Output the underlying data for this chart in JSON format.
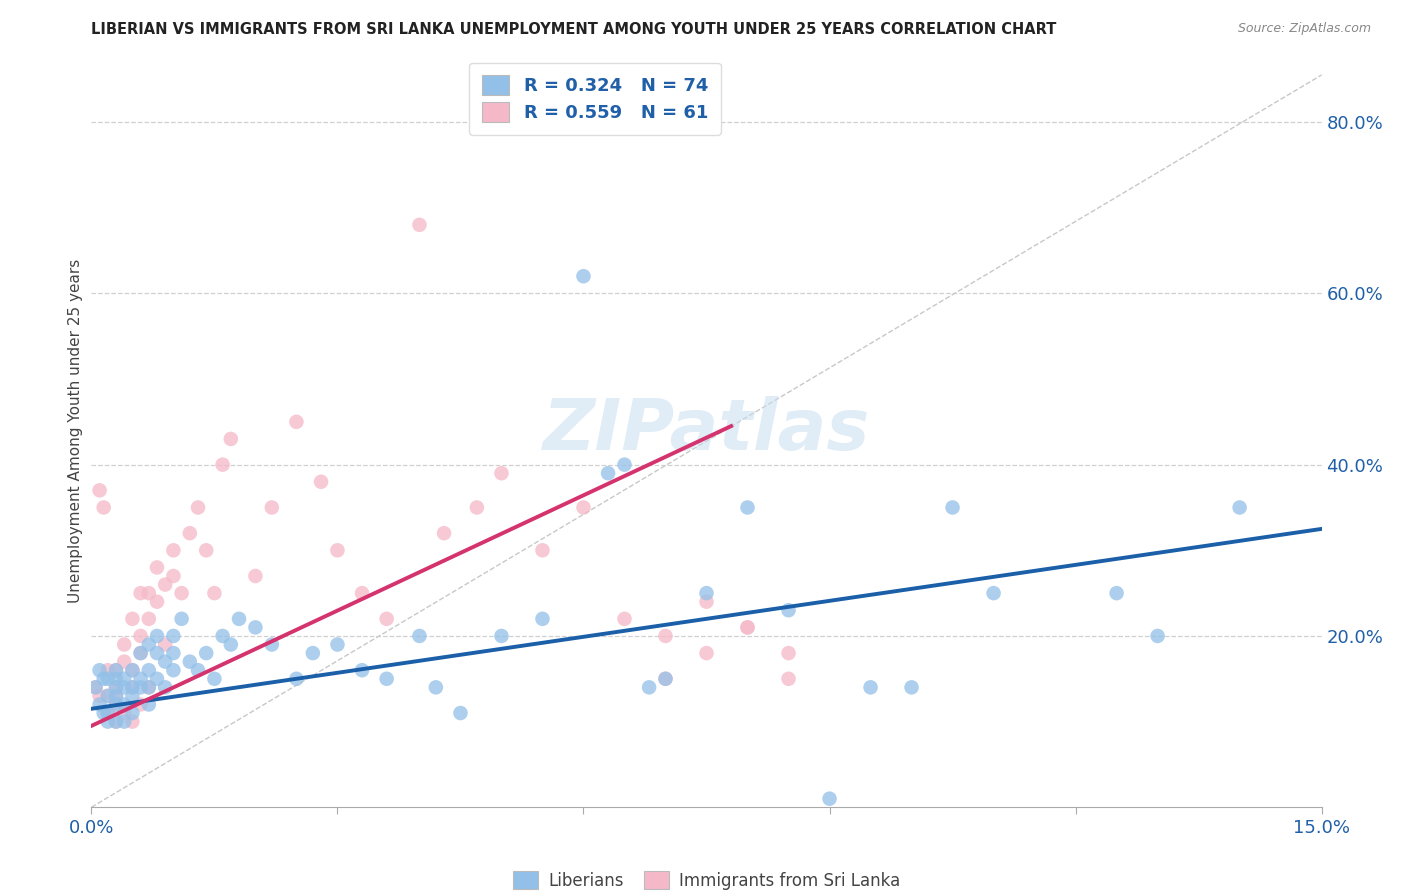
{
  "title": "LIBERIAN VS IMMIGRANTS FROM SRI LANKA UNEMPLOYMENT AMONG YOUTH UNDER 25 YEARS CORRELATION CHART",
  "source": "Source: ZipAtlas.com",
  "ylabel": "Unemployment Among Youth under 25 years",
  "xlim": [
    0.0,
    0.15
  ],
  "ylim": [
    0.0,
    0.88
  ],
  "xticks": [
    0.0,
    0.03,
    0.06,
    0.09,
    0.12,
    0.15
  ],
  "xticklabels": [
    "0.0%",
    "",
    "",
    "",
    "",
    "15.0%"
  ],
  "yticks_right": [
    0.0,
    0.2,
    0.4,
    0.6,
    0.8
  ],
  "yticklabels_right": [
    "",
    "20.0%",
    "40.0%",
    "60.0%",
    "80.0%"
  ],
  "blue_R": 0.324,
  "blue_N": 74,
  "pink_R": 0.559,
  "pink_N": 61,
  "blue_color": "#92c0e8",
  "pink_color": "#f5b8c8",
  "blue_line_color": "#1a5fa8",
  "pink_line_color": "#d4336e",
  "ref_line_color": "#c8c8c8",
  "background_color": "#ffffff",
  "watermark": "ZIPatlas",
  "blue_scatter_x": [
    0.0005,
    0.001,
    0.001,
    0.0015,
    0.0015,
    0.002,
    0.002,
    0.002,
    0.002,
    0.003,
    0.003,
    0.003,
    0.003,
    0.003,
    0.003,
    0.004,
    0.004,
    0.004,
    0.004,
    0.005,
    0.005,
    0.005,
    0.005,
    0.006,
    0.006,
    0.006,
    0.007,
    0.007,
    0.007,
    0.007,
    0.008,
    0.008,
    0.008,
    0.009,
    0.009,
    0.01,
    0.01,
    0.01,
    0.011,
    0.012,
    0.013,
    0.014,
    0.015,
    0.016,
    0.017,
    0.018,
    0.02,
    0.022,
    0.025,
    0.027,
    0.03,
    0.033,
    0.036,
    0.04,
    0.042,
    0.045,
    0.05,
    0.055,
    0.06,
    0.063,
    0.065,
    0.068,
    0.07,
    0.075,
    0.08,
    0.085,
    0.09,
    0.095,
    0.1,
    0.105,
    0.11,
    0.125,
    0.13,
    0.14
  ],
  "blue_scatter_y": [
    0.14,
    0.12,
    0.16,
    0.11,
    0.15,
    0.13,
    0.15,
    0.11,
    0.1,
    0.13,
    0.15,
    0.12,
    0.1,
    0.14,
    0.16,
    0.14,
    0.12,
    0.1,
    0.15,
    0.14,
    0.16,
    0.11,
    0.13,
    0.15,
    0.18,
    0.14,
    0.16,
    0.14,
    0.19,
    0.12,
    0.18,
    0.2,
    0.15,
    0.17,
    0.14,
    0.2,
    0.16,
    0.18,
    0.22,
    0.17,
    0.16,
    0.18,
    0.15,
    0.2,
    0.19,
    0.22,
    0.21,
    0.19,
    0.15,
    0.18,
    0.19,
    0.16,
    0.15,
    0.2,
    0.14,
    0.11,
    0.2,
    0.22,
    0.62,
    0.39,
    0.4,
    0.14,
    0.15,
    0.25,
    0.35,
    0.23,
    0.01,
    0.14,
    0.14,
    0.35,
    0.25,
    0.25,
    0.2,
    0.35
  ],
  "pink_scatter_x": [
    0.0005,
    0.001,
    0.001,
    0.0015,
    0.002,
    0.002,
    0.002,
    0.003,
    0.003,
    0.003,
    0.003,
    0.003,
    0.004,
    0.004,
    0.004,
    0.005,
    0.005,
    0.005,
    0.005,
    0.006,
    0.006,
    0.006,
    0.006,
    0.007,
    0.007,
    0.007,
    0.008,
    0.008,
    0.009,
    0.009,
    0.01,
    0.01,
    0.011,
    0.012,
    0.013,
    0.014,
    0.015,
    0.016,
    0.017,
    0.02,
    0.022,
    0.025,
    0.028,
    0.03,
    0.033,
    0.036,
    0.04,
    0.043,
    0.047,
    0.05,
    0.055,
    0.06,
    0.065,
    0.07,
    0.075,
    0.08,
    0.085,
    0.07,
    0.075,
    0.08,
    0.085
  ],
  "pink_scatter_y": [
    0.14,
    0.37,
    0.13,
    0.35,
    0.13,
    0.16,
    0.11,
    0.14,
    0.16,
    0.1,
    0.13,
    0.12,
    0.17,
    0.19,
    0.11,
    0.14,
    0.22,
    0.16,
    0.1,
    0.18,
    0.2,
    0.12,
    0.25,
    0.25,
    0.22,
    0.14,
    0.28,
    0.24,
    0.26,
    0.19,
    0.3,
    0.27,
    0.25,
    0.32,
    0.35,
    0.3,
    0.25,
    0.4,
    0.43,
    0.27,
    0.35,
    0.45,
    0.38,
    0.3,
    0.25,
    0.22,
    0.68,
    0.32,
    0.35,
    0.39,
    0.3,
    0.35,
    0.22,
    0.15,
    0.18,
    0.21,
    0.15,
    0.2,
    0.24,
    0.21,
    0.18
  ],
  "blue_trend_x": [
    0.0,
    0.15
  ],
  "blue_trend_y": [
    0.115,
    0.325
  ],
  "pink_trend_x": [
    0.0,
    0.078
  ],
  "pink_trend_y": [
    0.095,
    0.445
  ],
  "ref_line_x": [
    0.0,
    0.15
  ],
  "ref_line_y": [
    0.0,
    0.855
  ]
}
